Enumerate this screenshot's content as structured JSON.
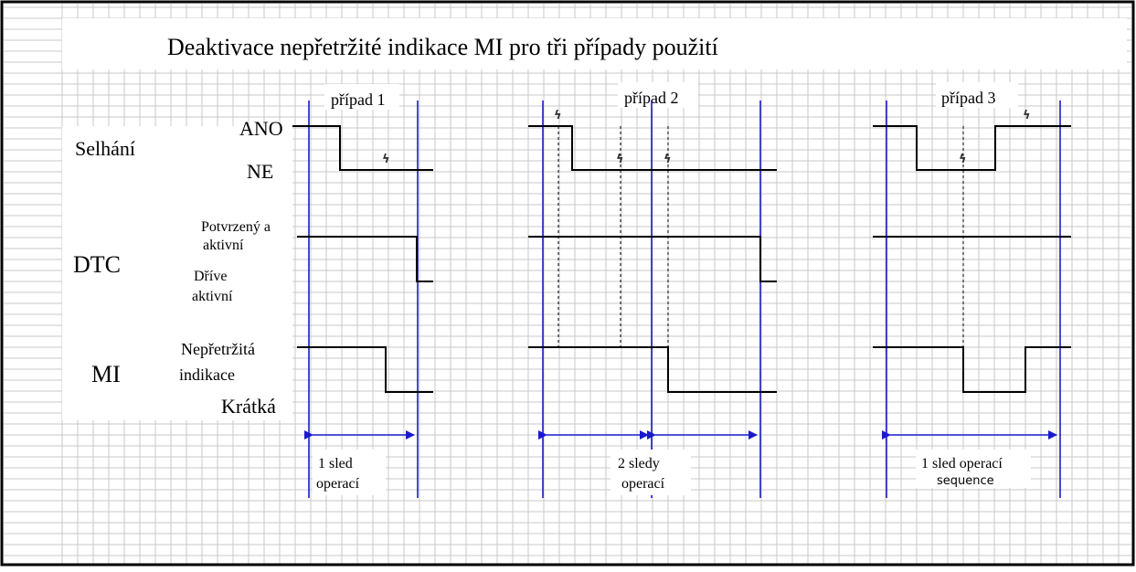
{
  "title": "Deaktivace nepřetržité indikace MI pro tři případy použití",
  "rows": {
    "failure": {
      "label": "Selhání",
      "yes": "ANO",
      "no": "NE"
    },
    "dtc": {
      "label": "DTC",
      "confirmed_1": "Potvrzený a",
      "confirmed_2": "aktivní",
      "previous_1": "Dříve",
      "previous_2": "aktivní"
    },
    "mi": {
      "label": "MI",
      "continuous_1": "Nepřetržitá",
      "continuous_2": "indikace",
      "short": "Krátká"
    }
  },
  "cases": [
    {
      "label": "případ 1",
      "span_1": "1 sled",
      "span_2": "operací"
    },
    {
      "label": "případ 2",
      "span_1": "2 sledy",
      "span_2": "operací"
    },
    {
      "label": "případ 3",
      "span_1": "1 sled operací",
      "span_2": "sequence"
    }
  ],
  "fault_symbol": "ϟ",
  "colors": {
    "grid": "#c8c8c8",
    "marker": "#1a1acc",
    "signal": "#000000",
    "border": "#000000"
  }
}
